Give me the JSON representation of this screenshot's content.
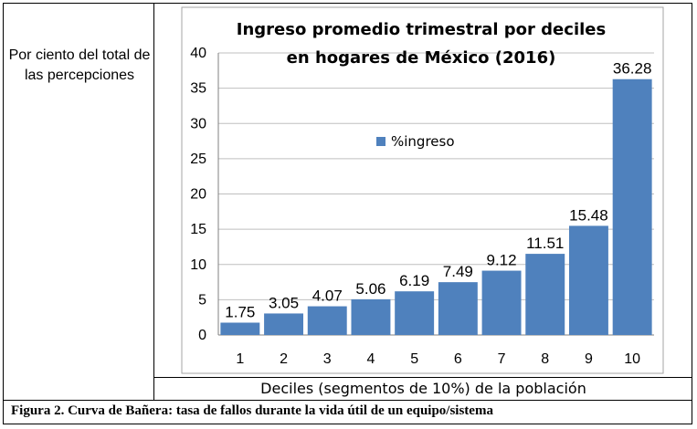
{
  "side_label": "Por ciento del total de las percepciones",
  "x_title": "Deciles (segmentos de 10%) de la población",
  "caption": "Figura 2. Curva de Bañera: tasa de fallos durante la vida útil de un equipo/sistema",
  "chart_data": {
    "type": "bar",
    "title_line1": "Ingreso promedio trimestral por deciles",
    "title_line2": "en hogares de México (2016)",
    "categories": [
      "1",
      "2",
      "3",
      "4",
      "5",
      "6",
      "7",
      "8",
      "9",
      "10"
    ],
    "series": [
      {
        "name": "%ingreso",
        "values": [
          1.75,
          3.05,
          4.07,
          5.06,
          6.19,
          7.49,
          9.12,
          11.51,
          15.48,
          36.28
        ]
      }
    ],
    "value_labels": [
      "1.75",
      "3.05",
      "4.07",
      "5.06",
      "6.19",
      "7.49",
      "9.12",
      "11.51",
      "15.48",
      "36.28"
    ],
    "yticks": [
      "0",
      "5",
      "10",
      "15",
      "20",
      "25",
      "30",
      "35",
      "40"
    ],
    "ylim": [
      0,
      40
    ],
    "grid": true,
    "legend_position": "center",
    "bar_color": "#4f81bd"
  }
}
